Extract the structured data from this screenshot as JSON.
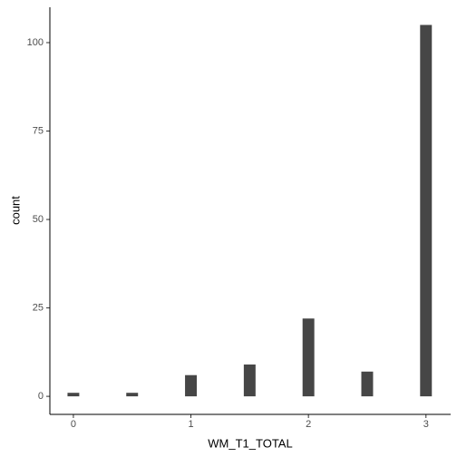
{
  "chart_data": {
    "type": "histogram",
    "x_label": "WM_T1_TOTAL",
    "y_label": "count",
    "bins": [
      -0.05,
      0.05,
      0.15,
      0.25,
      0.35,
      0.45,
      0.55,
      0.65,
      0.75,
      0.85,
      0.95,
      1.05,
      1.15,
      1.25,
      1.35,
      1.45,
      1.55,
      1.65,
      1.75,
      1.85,
      1.95,
      2.05,
      2.15,
      2.25,
      2.35,
      2.45,
      2.55,
      2.65,
      2.75,
      2.85,
      2.95,
      3.05
    ],
    "values": [
      1,
      0,
      0,
      0,
      0,
      1,
      0,
      0,
      0,
      0,
      6,
      0,
      0,
      0,
      0,
      9,
      0,
      0,
      0,
      0,
      22,
      0,
      0,
      0,
      0,
      7,
      0,
      0,
      0,
      0,
      105
    ],
    "color": "#464646",
    "xlim": [
      -0.2,
      3.21
    ],
    "xticks": [
      0,
      1,
      2,
      3
    ],
    "ylim": [
      -5.1,
      110
    ],
    "yticks": [
      0,
      25,
      50,
      75,
      100
    ],
    "grid": false
  }
}
